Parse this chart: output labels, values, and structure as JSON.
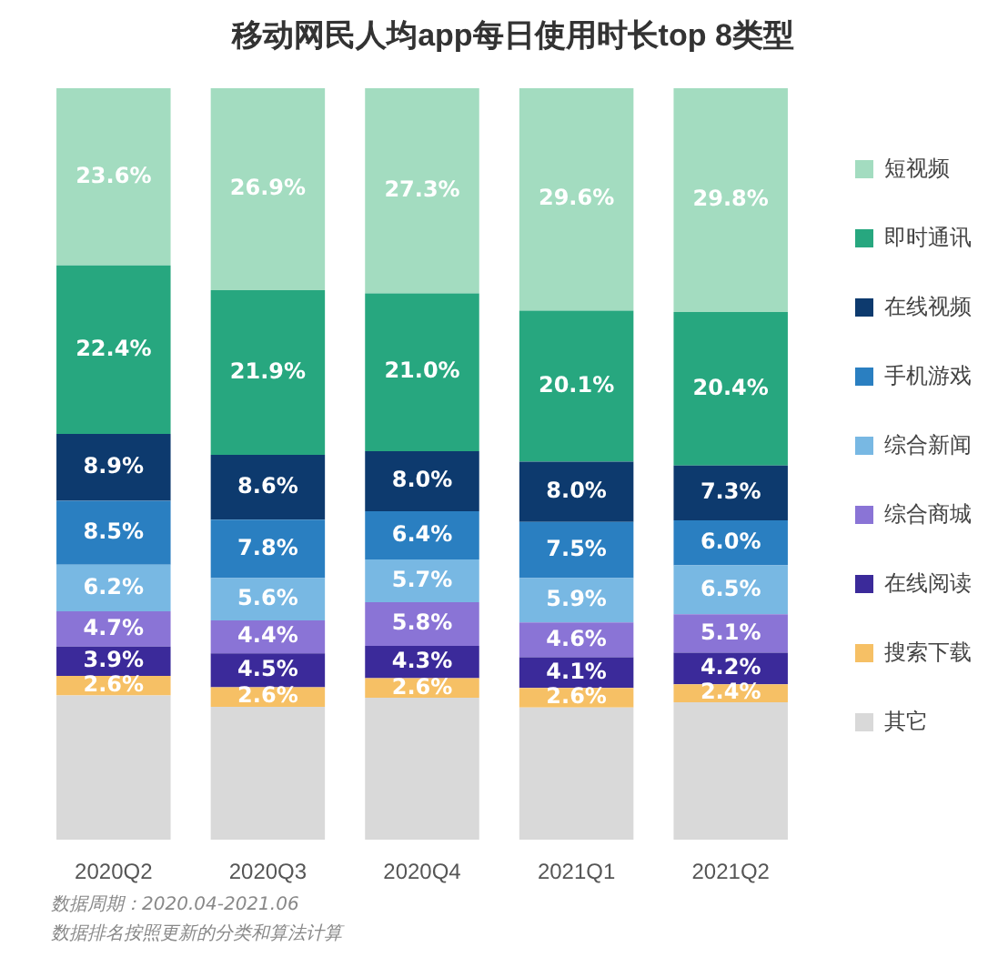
{
  "chart_data": {
    "type": "bar",
    "title": "移动网民人均app每日使用时长top 8类型",
    "stacked": true,
    "categories": [
      "2020Q2",
      "2020Q3",
      "2020Q4",
      "2021Q1",
      "2021Q2"
    ],
    "ylim": [
      0,
      100
    ],
    "tick_labels": "x",
    "grid": false,
    "legend": "right",
    "series": [
      {
        "name": "其它",
        "color": "#d9d9d9",
        "values": [
          19.2,
          17.7,
          18.9,
          17.6,
          18.3
        ],
        "value_labels": [
          null,
          null,
          null,
          null,
          null
        ]
      },
      {
        "name": "搜索下载",
        "color": "#f6c065",
        "values": [
          2.6,
          2.6,
          2.6,
          2.6,
          2.4
        ],
        "value_labels": [
          "2.6%",
          "2.6%",
          "2.6%",
          "2.6%",
          "2.4%"
        ]
      },
      {
        "name": "在线阅读",
        "color": "#3b2a9a",
        "values": [
          3.9,
          4.5,
          4.3,
          4.1,
          4.2
        ],
        "value_labels": [
          "3.9%",
          "4.5%",
          "4.3%",
          "4.1%",
          "4.2%"
        ]
      },
      {
        "name": "综合商城",
        "color": "#8a74d6",
        "values": [
          4.7,
          4.4,
          5.8,
          4.6,
          5.1
        ],
        "value_labels": [
          "4.7%",
          "4.4%",
          "5.8%",
          "4.6%",
          "5.1%"
        ]
      },
      {
        "name": "综合新闻",
        "color": "#78b8e3",
        "values": [
          6.2,
          5.6,
          5.7,
          5.9,
          6.5
        ],
        "value_labels": [
          "6.2%",
          "5.6%",
          "5.7%",
          "5.9%",
          "6.5%"
        ]
      },
      {
        "name": "手机游戏",
        "color": "#2a7fc1",
        "values": [
          8.5,
          7.8,
          6.4,
          7.5,
          6.0
        ],
        "value_labels": [
          "8.5%",
          "7.8%",
          "6.4%",
          "7.5%",
          "6.0%"
        ]
      },
      {
        "name": "在线视频",
        "color": "#0d3a6e",
        "values": [
          8.9,
          8.6,
          8.0,
          8.0,
          7.3
        ],
        "value_labels": [
          "8.9%",
          "8.6%",
          "8.0%",
          "8.0%",
          "7.3%"
        ]
      },
      {
        "name": "即时通讯",
        "color": "#27a77f",
        "values": [
          22.4,
          21.9,
          21.0,
          20.1,
          20.4
        ],
        "value_labels": [
          "22.4%",
          "21.9%",
          "21.0%",
          "20.1%",
          "20.4%"
        ]
      },
      {
        "name": "短视频",
        "color": "#a3dcc0",
        "values": [
          23.6,
          26.9,
          27.3,
          29.6,
          29.8
        ],
        "value_labels": [
          "23.6%",
          "26.9%",
          "27.3%",
          "29.6%",
          "29.8%"
        ]
      }
    ],
    "annotations": [
      "数据周期：2020.04-2021.06",
      "数据排名按照更新的分类和算法计算"
    ]
  }
}
